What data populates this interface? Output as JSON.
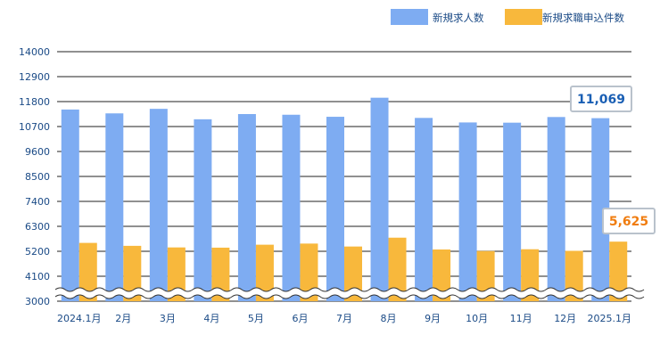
{
  "chart_data": {
    "type": "bar",
    "categories": [
      "2024.1月",
      "2月",
      "3月",
      "4月",
      "5月",
      "6月",
      "7月",
      "8月",
      "9月",
      "10月",
      "11月",
      "12月",
      "2025.1月"
    ],
    "series": [
      {
        "name": "新規求人数",
        "color": "#7eacf2",
        "values": [
          11450,
          11280,
          11480,
          11020,
          11250,
          11220,
          11130,
          11970,
          11080,
          10880,
          10870,
          11120,
          11069
        ]
      },
      {
        "name": "新規求職申込件数",
        "color": "#f8b83c",
        "values": [
          5570,
          5440,
          5370,
          5360,
          5490,
          5540,
          5410,
          5800,
          5280,
          5210,
          5290,
          5220,
          5625
        ]
      }
    ],
    "yticks": [
      3000,
      4100,
      5200,
      6300,
      7400,
      8500,
      9600,
      10700,
      11800,
      12900,
      14000
    ],
    "ylim": [
      3000,
      14000
    ],
    "axis_break": true,
    "grid": true,
    "legend": "top-right",
    "callouts": [
      {
        "series": 0,
        "index": 12,
        "label": "11,069",
        "color": "#1a5fb4"
      },
      {
        "series": 1,
        "index": 12,
        "label": "5,625",
        "color": "#f07d10"
      }
    ]
  }
}
